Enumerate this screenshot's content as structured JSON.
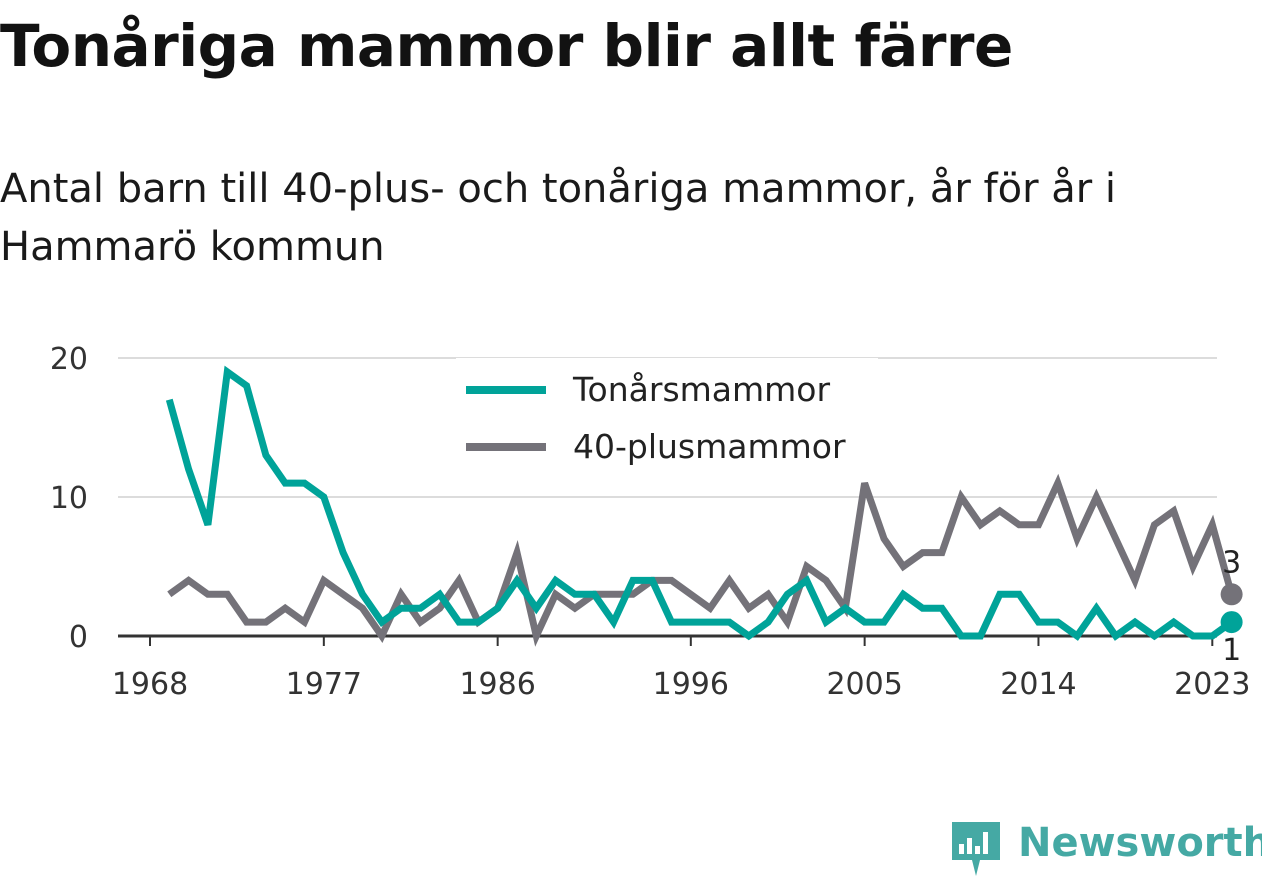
{
  "header": {
    "title": "Tonåriga mammor blir allt färre",
    "subtitle": "Antal barn till 40-plus- och tonåriga mammor, år för år i Hammarö kommun"
  },
  "logo": {
    "text": "Newsworthy",
    "icon": "bar-chart-badge-icon",
    "color": "#45a9a4"
  },
  "chart_data": {
    "type": "line",
    "title": "Tonåriga mammor blir allt färre",
    "subtitle": "Antal barn till 40-plus- och tonåriga mammor, år för år i Hammarö kommun",
    "xlabel": "",
    "ylabel": "",
    "xlim": [
      1968,
      2024
    ],
    "ylim": [
      0,
      20
    ],
    "x_ticks": [
      "1968",
      "1977",
      "1986",
      "1996",
      "2005",
      "2014",
      "2023"
    ],
    "y_ticks": [
      "0",
      "10",
      "20"
    ],
    "grid": "horizontal",
    "legend_position": "top-center",
    "x": [
      1969,
      1970,
      1971,
      1972,
      1973,
      1974,
      1975,
      1976,
      1977,
      1978,
      1979,
      1980,
      1981,
      1982,
      1983,
      1984,
      1985,
      1986,
      1987,
      1988,
      1989,
      1990,
      1991,
      1992,
      1993,
      1994,
      1995,
      1996,
      1997,
      1998,
      1999,
      2000,
      2001,
      2002,
      2003,
      2004,
      2005,
      2006,
      2007,
      2008,
      2009,
      2010,
      2011,
      2012,
      2013,
      2014,
      2015,
      2016,
      2017,
      2018,
      2019,
      2020,
      2021,
      2022,
      2023,
      2024
    ],
    "series": [
      {
        "name": "Tonårsmammor",
        "color": "#00a399",
        "values": [
          17,
          12,
          8,
          19,
          18,
          13,
          11,
          11,
          10,
          6,
          3,
          1,
          2,
          2,
          3,
          1,
          1,
          2,
          4,
          2,
          4,
          3,
          3,
          1,
          4,
          4,
          1,
          1,
          1,
          1,
          0,
          1,
          3,
          4,
          1,
          2,
          1,
          1,
          3,
          2,
          2,
          0,
          0,
          3,
          3,
          1,
          1,
          0,
          2,
          0,
          1,
          0,
          1,
          0,
          0,
          1
        ],
        "end_label": "1"
      },
      {
        "name": "40-plusmammor",
        "color": "#747279",
        "values": [
          3,
          4,
          3,
          3,
          1,
          1,
          2,
          1,
          4,
          3,
          2,
          0,
          3,
          1,
          2,
          4,
          1,
          2,
          6,
          0,
          3,
          2,
          3,
          3,
          3,
          4,
          4,
          3,
          2,
          4,
          2,
          3,
          1,
          5,
          4,
          2,
          11,
          7,
          5,
          6,
          6,
          10,
          8,
          9,
          8,
          8,
          11,
          7,
          10,
          7,
          4,
          8,
          9,
          5,
          8,
          3
        ],
        "end_label": "3"
      }
    ]
  }
}
